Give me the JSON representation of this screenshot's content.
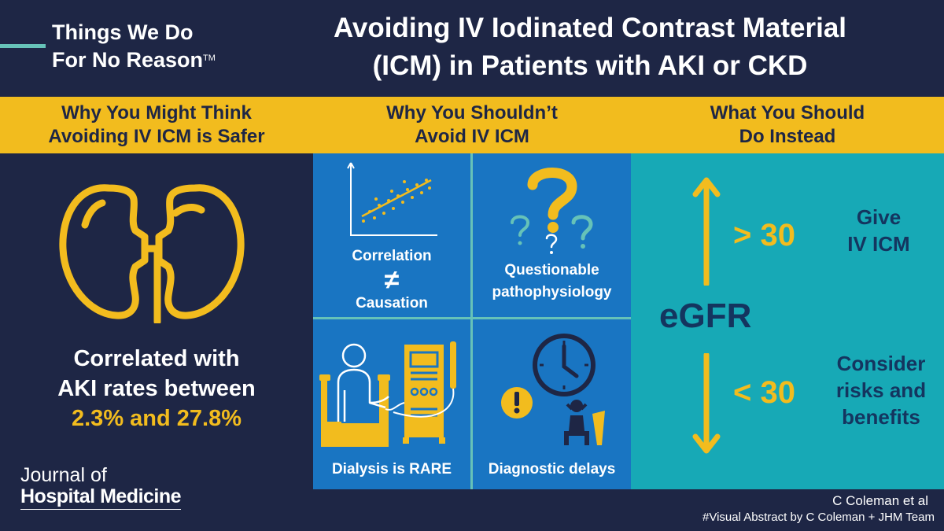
{
  "header": {
    "brand_line1": "Things We Do",
    "brand_line2": "For No Reason",
    "brand_tm": "TM",
    "title_line1": "Avoiding IV Iodinated Contrast Material",
    "title_line2": "(ICM) in Patients with AKI or CKD"
  },
  "columns": [
    {
      "line1": "Why You Might Think",
      "line2": "Avoiding IV ICM is Safer"
    },
    {
      "line1": "Why You Shouldn’t",
      "line2": "Avoid IV ICM"
    },
    {
      "line1": "What You Should",
      "line2": "Do Instead"
    }
  ],
  "left": {
    "line1": "Correlated with",
    "line2": "AKI rates between",
    "range": "2.3% and 27.8%"
  },
  "cells": {
    "correlation": "Correlation",
    "not_equal": "≠",
    "causation": "Causation",
    "questionable1": "Questionable",
    "questionable2": "pathophysiology",
    "dialysis": "Dialysis is RARE",
    "delays": "Diagnostic delays"
  },
  "right": {
    "egfr": "eGFR",
    "high_threshold": "> 30",
    "high_action1": "Give",
    "high_action2": "IV ICM",
    "low_threshold": "< 30",
    "low_action1": "Consider",
    "low_action2": "risks and",
    "low_action3": "benefits"
  },
  "journal": {
    "line1": "Journal of",
    "line2": "Hospital Medicine"
  },
  "footer": {
    "author": "C Coleman et al",
    "credit": "#Visual Abstract by C Coleman + JHM Team"
  },
  "colors": {
    "navy": "#1e2645",
    "yellow": "#f2bc1e",
    "blue": "#1975c2",
    "teal": "#17a9b6",
    "mint": "#66c2b8",
    "dark_blue_text": "#14355f"
  }
}
